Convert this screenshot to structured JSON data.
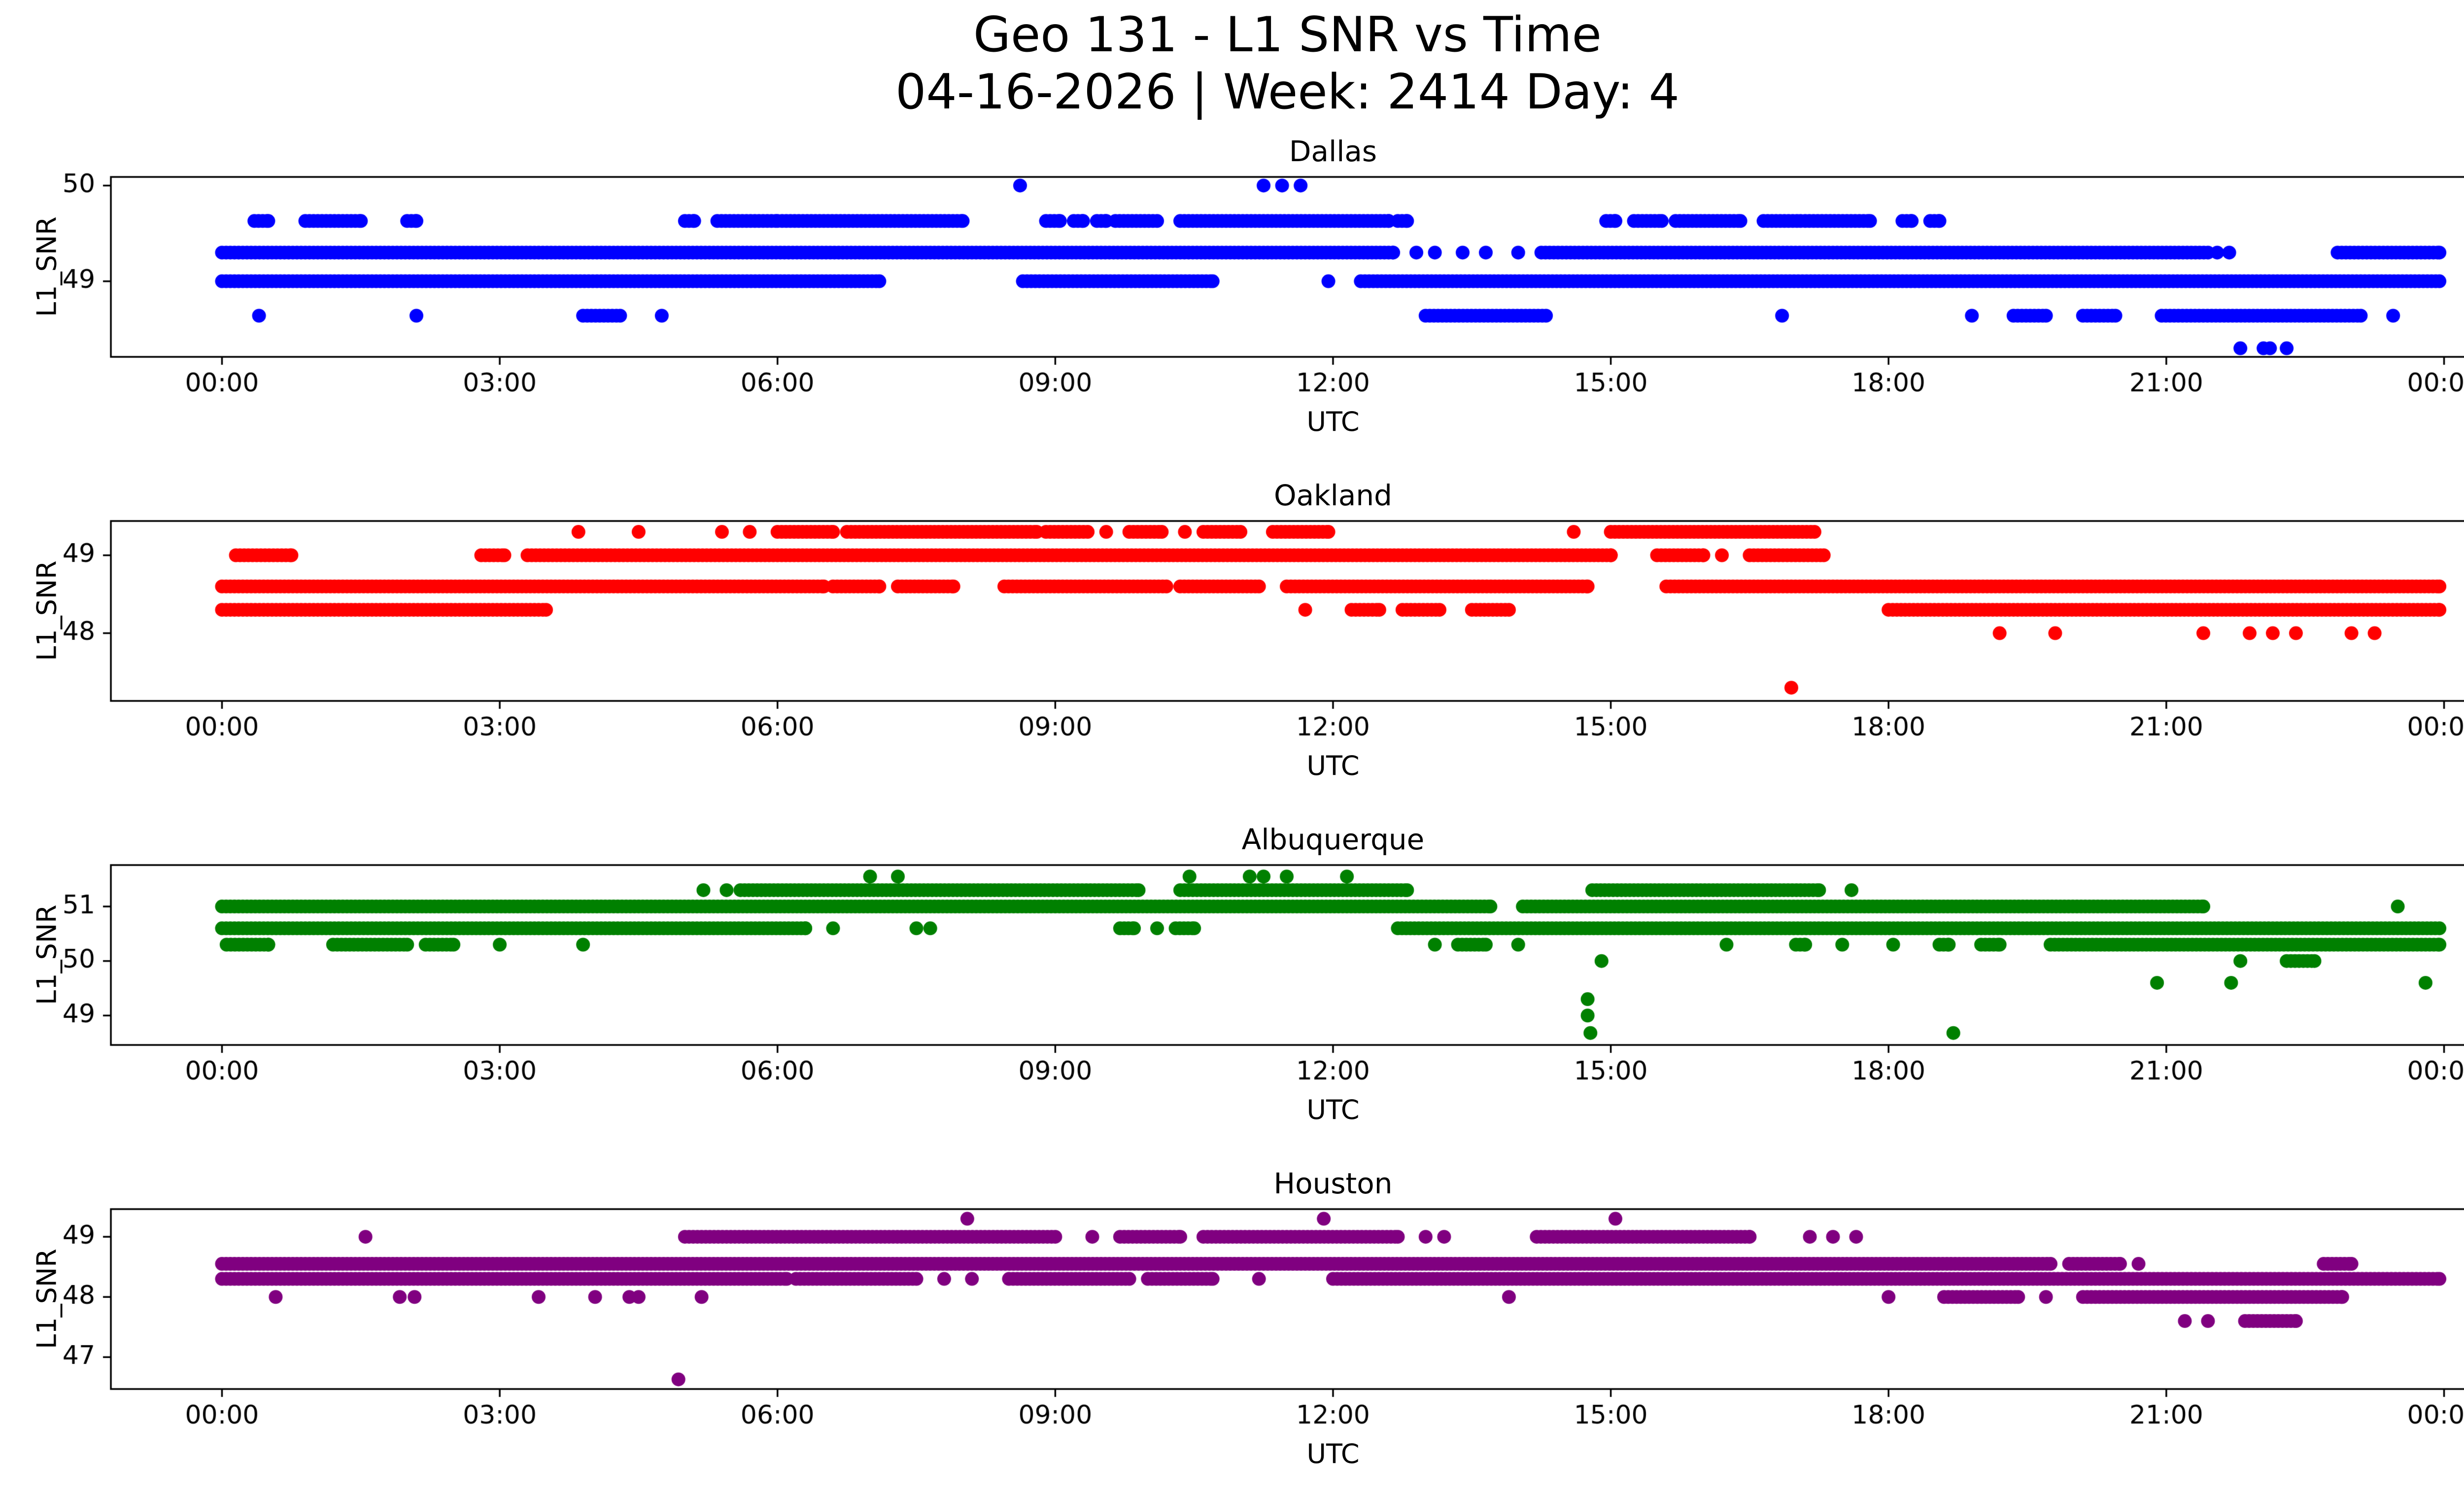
{
  "suptitle_line1": "Geo 131 - L1 SNR vs Time",
  "suptitle_line2": "04-16-2026 | Week: 2414 Day: 4",
  "labels": {
    "xlabel": "UTC",
    "ylabel": "L1_SNR"
  },
  "chart_data": {
    "type": "scatter",
    "title": "Geo 131 - L1 SNR vs Time",
    "subtitle": "04-16-2026 | Week: 2414 Day: 4",
    "x_axis": {
      "label": "UTC",
      "unit": "hours",
      "xlim": [
        -1.2,
        25.2
      ],
      "tick_hours": [
        0,
        3,
        6,
        9,
        12,
        15,
        18,
        21,
        24
      ],
      "tick_labels": [
        "00:00",
        "03:00",
        "06:00",
        "09:00",
        "12:00",
        "15:00",
        "18:00",
        "21:00",
        "00:00"
      ]
    },
    "y_axis_label": "L1_SNR",
    "grid": false,
    "legend": "none",
    "marker": {
      "shape": "circle",
      "radius_px": 14,
      "dense_step_hours": 0.045
    },
    "subplots": [
      {
        "title": "Dallas",
        "color": "#0000ff",
        "ylim": [
          48.21,
          50.09
        ],
        "yticks": [
          50,
          49
        ],
        "bands": [
          {
            "y": 50.0,
            "segments": [],
            "points": [
              8.62,
              11.25,
              11.45,
              11.65
            ]
          },
          {
            "y": 49.63,
            "segments": [
              [
                0.35,
                0.5
              ],
              [
                0.9,
                1.5
              ],
              [
                2.0,
                2.1
              ],
              [
                5.0,
                5.1
              ],
              [
                5.35,
                6.0
              ],
              [
                6.05,
                8.0
              ],
              [
                8.9,
                9.05
              ],
              [
                9.2,
                9.3
              ],
              [
                9.45,
                9.55
              ],
              [
                9.65,
                10.1
              ],
              [
                10.35,
                12.6
              ],
              [
                12.7,
                12.8
              ],
              [
                14.95,
                15.05
              ],
              [
                15.25,
                15.55
              ],
              [
                15.7,
                16.4
              ],
              [
                16.65,
                17.05
              ],
              [
                17.1,
                17.8
              ],
              [
                18.15,
                18.25
              ],
              [
                18.45,
                18.55
              ]
            ],
            "points": []
          },
          {
            "y": 49.3,
            "segments": [
              [
                0.0,
                12.65
              ],
              [
                14.25,
                21.45
              ],
              [
                22.85,
                23.95
              ]
            ],
            "points": [
              12.9,
              13.1,
              13.4,
              13.65,
              14.0,
              21.55,
              21.68
            ]
          },
          {
            "y": 49.0,
            "segments": [
              [
                0.0,
                7.1
              ],
              [
                8.65,
                10.7
              ],
              [
                12.3,
                23.95
              ]
            ],
            "points": [
              11.95
            ]
          },
          {
            "y": 48.64,
            "segments": [
              [
                3.9,
                4.3
              ],
              [
                13.0,
                14.3
              ],
              [
                19.35,
                19.7
              ],
              [
                20.1,
                20.45
              ],
              [
                20.95,
                23.1
              ]
            ],
            "points": [
              0.4,
              2.1,
              4.75,
              16.85,
              18.9,
              23.45
            ]
          },
          {
            "y": 48.3,
            "segments": [],
            "points": [
              21.8,
              22.05,
              22.12,
              22.3
            ]
          }
        ]
      },
      {
        "title": "Oakland",
        "color": "#ff0000",
        "ylim": [
          47.13,
          49.44
        ],
        "yticks": [
          49,
          48
        ],
        "bands": [
          {
            "y": 49.3,
            "segments": [
              [
                6.0,
                6.6
              ],
              [
                6.75,
                8.8
              ],
              [
                8.9,
                9.35
              ],
              [
                9.8,
                10.15
              ],
              [
                10.6,
                11.0
              ],
              [
                11.35,
                11.95
              ],
              [
                15.0,
                17.2
              ]
            ],
            "points": [
              3.85,
              4.5,
              5.4,
              5.7,
              9.55,
              10.4,
              14.6
            ]
          },
          {
            "y": 49.0,
            "segments": [
              [
                0.15,
                0.75
              ],
              [
                2.8,
                3.05
              ],
              [
                3.3,
                15.0
              ],
              [
                15.5,
                16.0
              ],
              [
                16.5,
                17.3
              ]
            ],
            "points": [
              16.2
            ]
          },
          {
            "y": 48.6,
            "segments": [
              [
                0.0,
                6.5
              ],
              [
                6.6,
                7.1
              ],
              [
                7.3,
                7.9
              ],
              [
                8.45,
                10.2
              ],
              [
                10.35,
                11.2
              ],
              [
                11.5,
                14.75
              ],
              [
                15.6,
                23.95
              ]
            ],
            "points": []
          },
          {
            "y": 48.3,
            "segments": [
              [
                0.0,
                3.5
              ],
              [
                12.2,
                12.5
              ],
              [
                12.75,
                13.15
              ],
              [
                13.5,
                13.9
              ],
              [
                18.0,
                23.95
              ]
            ],
            "points": [
              11.7
            ]
          },
          {
            "y": 48.0,
            "segments": [],
            "points": [
              19.2,
              19.8,
              21.4,
              21.9,
              22.15,
              22.4,
              23.0,
              23.25
            ]
          },
          {
            "y": 47.3,
            "segments": [],
            "points": [
              16.95
            ]
          }
        ]
      },
      {
        "title": "Albuquerque",
        "color": "#008000",
        "ylim": [
          48.46,
          51.76
        ],
        "yticks": [
          51,
          50,
          49
        ],
        "bands": [
          {
            "y": 51.55,
            "segments": [],
            "points": [
              7.0,
              7.3,
              10.45,
              11.1,
              11.25,
              11.5,
              12.15
            ]
          },
          {
            "y": 51.3,
            "segments": [
              [
                5.6,
                9.9
              ],
              [
                10.35,
                12.8
              ],
              [
                14.8,
                17.25
              ]
            ],
            "points": [
              5.2,
              5.45,
              17.6
            ]
          },
          {
            "y": 51.0,
            "segments": [
              [
                0.0,
                13.7
              ],
              [
                14.05,
                21.4
              ]
            ],
            "points": [
              23.5
            ]
          },
          {
            "y": 50.6,
            "segments": [
              [
                0.0,
                6.3
              ],
              [
                9.7,
                9.85
              ],
              [
                10.3,
                10.5
              ],
              [
                12.7,
                23.95
              ]
            ],
            "points": [
              6.6,
              7.5,
              7.65,
              10.1
            ]
          },
          {
            "y": 50.3,
            "segments": [
              [
                0.05,
                0.5
              ],
              [
                1.2,
                2.0
              ],
              [
                2.2,
                2.5
              ],
              [
                13.35,
                13.65
              ],
              [
                17.0,
                17.1
              ],
              [
                18.55,
                18.65
              ],
              [
                19.0,
                19.2
              ],
              [
                19.75,
                23.95
              ]
            ],
            "points": [
              3.0,
              3.9,
              13.1,
              14.0,
              16.25,
              17.5,
              18.05
            ]
          },
          {
            "y": 50.0,
            "segments": [
              [
                22.3,
                22.6
              ]
            ],
            "points": [
              14.9,
              21.8
            ]
          },
          {
            "y": 49.6,
            "segments": [],
            "points": [
              20.9,
              21.7,
              23.8
            ]
          },
          {
            "y": 49.3,
            "segments": [],
            "points": [
              14.75
            ]
          },
          {
            "y": 49.0,
            "segments": [],
            "points": [
              14.75
            ]
          },
          {
            "y": 48.68,
            "segments": [],
            "points": [
              14.78,
              18.7
            ]
          }
        ]
      },
      {
        "title": "Houston",
        "color": "#800080",
        "ylim": [
          46.47,
          49.46
        ],
        "yticks": [
          49,
          48,
          47
        ],
        "bands": [
          {
            "y": 49.3,
            "segments": [],
            "points": [
              8.05,
              11.9,
              15.05
            ]
          },
          {
            "y": 49.0,
            "segments": [
              [
                5.0,
                9.0
              ],
              [
                9.7,
                10.35
              ],
              [
                10.6,
                12.7
              ],
              [
                14.2,
                16.5
              ]
            ],
            "points": [
              1.55,
              9.4,
              13.0,
              13.2,
              17.15,
              17.4,
              17.65
            ]
          },
          {
            "y": 48.55,
            "segments": [
              [
                0.0,
                19.75
              ],
              [
                19.95,
                20.5
              ],
              [
                22.7,
                23.0
              ]
            ],
            "points": [
              20.7
            ]
          },
          {
            "y": 48.3,
            "segments": [
              [
                0.0,
                6.1
              ],
              [
                6.2,
                7.5
              ],
              [
                8.5,
                9.8
              ],
              [
                10.0,
                10.7
              ],
              [
                12.0,
                23.95
              ]
            ],
            "points": [
              7.8,
              8.1,
              11.2
            ]
          },
          {
            "y": 48.0,
            "segments": [
              [
                18.6,
                19.4
              ],
              [
                20.1,
                22.9
              ]
            ],
            "points": [
              0.58,
              1.92,
              2.08,
              3.42,
              4.03,
              4.4,
              4.5,
              5.18,
              13.9,
              18.0,
              19.7
            ]
          },
          {
            "y": 47.6,
            "segments": [
              [
                21.85,
                22.4
              ]
            ],
            "points": [
              21.2,
              21.45
            ]
          },
          {
            "y": 46.63,
            "segments": [],
            "points": [
              4.93
            ]
          }
        ]
      }
    ]
  }
}
